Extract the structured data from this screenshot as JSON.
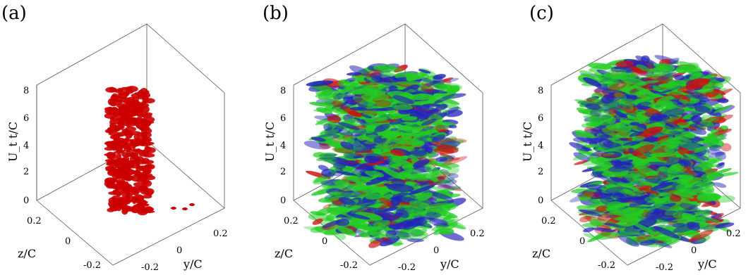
{
  "panels": [
    {
      "label": "(a)",
      "vertical_axis": {
        "label": "U_t t/C",
        "ticks": [
          "0",
          "2",
          "4",
          "6",
          "8"
        ]
      },
      "z_axis": {
        "label": "z/C",
        "ticks": [
          "0.2",
          "0",
          "-0.2"
        ]
      },
      "y_axis": {
        "label": "y/C",
        "ticks": [
          "-0.2",
          "0",
          "0.2"
        ]
      },
      "colors": [
        "#cc0000"
      ]
    },
    {
      "label": "(b)",
      "vertical_axis": {
        "label": "U_t t/C",
        "ticks": [
          "0",
          "2",
          "4",
          "6",
          "8"
        ]
      },
      "z_axis": {
        "label": "z/C",
        "ticks": [
          "0.2",
          "0",
          "-0.2"
        ]
      },
      "y_axis": {
        "label": "y/C",
        "ticks": [
          "-0.2",
          "0",
          "0.2"
        ]
      },
      "colors": [
        "#22cc22",
        "#2222bb",
        "#cc1111"
      ]
    },
    {
      "label": "(c)",
      "vertical_axis": {
        "label": "U_t t/C",
        "ticks": [
          "0",
          "2",
          "4",
          "6",
          "8"
        ]
      },
      "z_axis": {
        "label": "z/C",
        "ticks": [
          "0.2",
          "0",
          "-0.2"
        ]
      },
      "y_axis": {
        "label": "y/C",
        "ticks": [
          "-0.2",
          "0",
          "0.2"
        ]
      },
      "colors": [
        "#22cc22",
        "#2222bb",
        "#cc1111"
      ]
    }
  ]
}
